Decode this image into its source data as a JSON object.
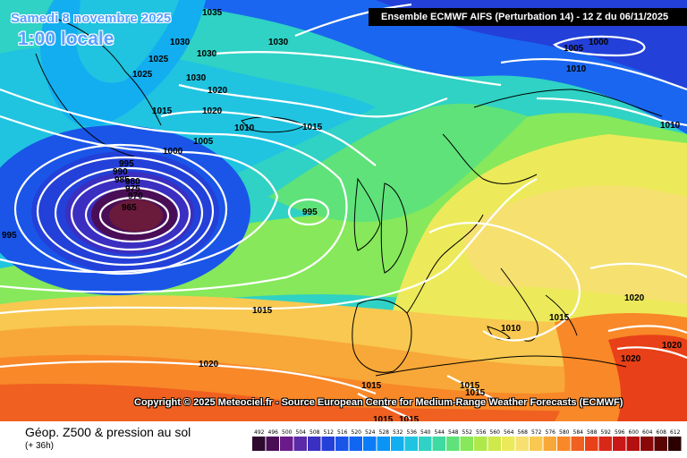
{
  "header": {
    "date_title": "Samedi 8 novembre 2025",
    "time_title": "1:00 locale",
    "run_info": "Ensemble ECMWF AIFS  (Perturbation 14)  - 12 Z du 06/11/2025"
  },
  "copyright": "Copyright © 2025 Meteociel.fr - Source European Centre for Medium-Range Weather Forecasts (ECMWF)",
  "legend": {
    "title": "Géop. Z500 & pression au sol",
    "subtitle": "(+ 36h)",
    "ticks": [
      "492",
      "496",
      "500",
      "504",
      "508",
      "512",
      "516",
      "520",
      "524",
      "528",
      "532",
      "536",
      "540",
      "544",
      "548",
      "552",
      "556",
      "560",
      "564",
      "568",
      "572",
      "576",
      "580",
      "584",
      "588",
      "592",
      "596",
      "600",
      "604",
      "608",
      "612"
    ],
    "colors": [
      "#2d0a2e",
      "#4a0e57",
      "#6a1a8a",
      "#5a2aa8",
      "#3a2fc0",
      "#2340d8",
      "#1a55e8",
      "#1066f0",
      "#0a7cf5",
      "#0a95f5",
      "#12aef0",
      "#20c4e0",
      "#2fd2c4",
      "#3fdaa0",
      "#5fe27a",
      "#86e85a",
      "#aee84a",
      "#cfe84a",
      "#ecea5a",
      "#f6e070",
      "#f8c850",
      "#f8a838",
      "#f88828",
      "#f06020",
      "#e84018",
      "#d82818",
      "#c81818",
      "#b41010",
      "#8a0808",
      "#5a0404",
      "#2a0000"
    ]
  },
  "isobars": [
    "1035",
    "1030",
    "1030",
    "1030",
    "1025",
    "1030",
    "1025",
    "1020",
    "1015",
    "1020",
    "1010",
    "1015",
    "1005",
    "1000",
    "995",
    "990",
    "985",
    "980",
    "975",
    "970",
    "965",
    "995",
    "995",
    "1000",
    "1005",
    "1010",
    "1010",
    "1015",
    "1020",
    "1015",
    "1020",
    "1010",
    "1020",
    "1020",
    "1015",
    "1015",
    "1015",
    "1015",
    "1015"
  ]
}
